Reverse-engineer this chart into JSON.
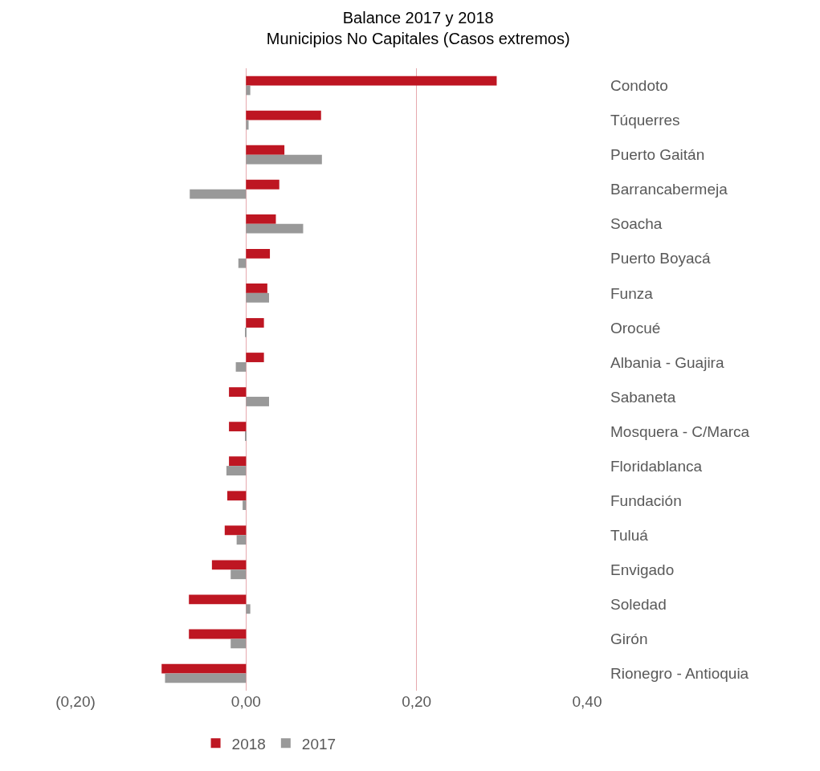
{
  "chart_data": {
    "type": "bar",
    "orientation": "horizontal",
    "title": "Balance 2017 y 2018\nMunicipios No Capitales (Casos extremos)",
    "categories": [
      "Condoto",
      "Túquerres",
      "Puerto Gaitán",
      "Barrancabermeja",
      "Soacha",
      "Puerto Boyacá",
      "Funza",
      "Orocué",
      "Albania - Guajira",
      "Sabaneta",
      "Mosquera - C/Marca",
      "Floridablanca",
      "Fundación",
      "Tuluá",
      "Envigado",
      "Soledad",
      "Girón",
      "Rionegro - Antioquia"
    ],
    "series": [
      {
        "name": "2018",
        "color": "#be1622",
        "values": [
          0.294,
          0.088,
          0.045,
          0.039,
          0.035,
          0.028,
          0.025,
          0.021,
          0.021,
          -0.02,
          -0.02,
          -0.02,
          -0.022,
          -0.025,
          -0.04,
          -0.067,
          -0.067,
          -0.099
        ]
      },
      {
        "name": "2017",
        "color": "#999999",
        "values": [
          0.005,
          0.003,
          0.089,
          -0.066,
          0.067,
          -0.009,
          0.027,
          -0.001,
          -0.012,
          0.027,
          -0.001,
          -0.023,
          -0.004,
          -0.011,
          -0.018,
          0.005,
          -0.018,
          -0.095
        ]
      }
    ],
    "xlim": [
      -0.2,
      0.4
    ],
    "xticks": [
      {
        "value": -0.2,
        "label": "(0,20)"
      },
      {
        "value": 0,
        "label": "0,00"
      },
      {
        "value": 0.2,
        "label": "0,20"
      },
      {
        "value": 0.4,
        "label": "0,40"
      }
    ],
    "grid": "x",
    "legend": "bottom"
  }
}
